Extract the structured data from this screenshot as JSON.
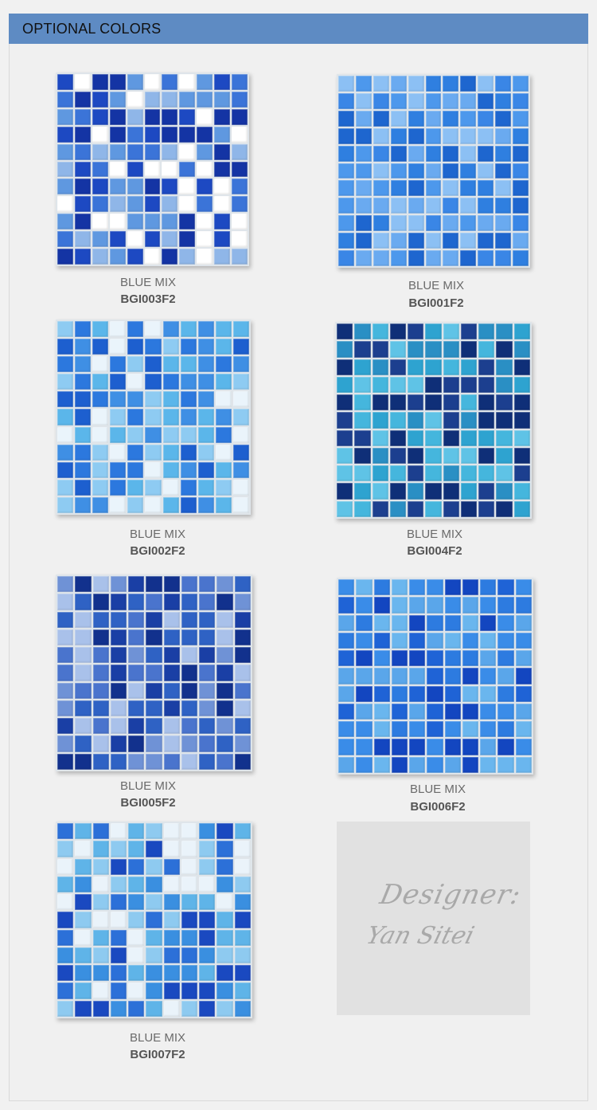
{
  "header": {
    "title": "OPTIONAL COLORS"
  },
  "products": [
    {
      "name": "BLUE MIX",
      "code": "BGI003F2",
      "palette": [
        "#1d49c2",
        "#3b74d8",
        "#8fb6e8",
        "#ffffff",
        "#1434a4",
        "#5f98e0"
      ]
    },
    {
      "name": "BLUE MIX",
      "code": "BGI001F2",
      "palette": [
        "#2f7fe0",
        "#4d98ec",
        "#1e66cf",
        "#6aaaf0",
        "#3a86e6",
        "#8cc0f4"
      ]
    },
    {
      "name": "BLUE MIX",
      "code": "BGI002F2",
      "palette": [
        "#2c78de",
        "#5bb6ea",
        "#1d5fcf",
        "#eaf4fb",
        "#8ecbf2",
        "#3f8fe4"
      ]
    },
    {
      "name": "BLUE MIX",
      "code": "BGI004F2",
      "palette": [
        "#1c3f8f",
        "#2ea3d0",
        "#45b6dd",
        "#0f2f78",
        "#5fc3e6",
        "#2a8fc4"
      ]
    },
    {
      "name": "BLUE MIX",
      "code": "BGI005F2",
      "palette": [
        "#1a3fa5",
        "#2f62c4",
        "#6f92d6",
        "#a9c1ea",
        "#12318d",
        "#4a74cd"
      ]
    },
    {
      "name": "BLUE MIX",
      "code": "BGI006F2",
      "palette": [
        "#1f63d6",
        "#3a8ce8",
        "#6ab6ee",
        "#1346c0",
        "#5aa6ea",
        "#2d7be0"
      ]
    },
    {
      "name": "BLUE MIX",
      "code": "BGI007F2",
      "palette": [
        "#2c70d8",
        "#5fb4e8",
        "#eaf3fa",
        "#1a49c0",
        "#8ecaf0",
        "#3a8fe0"
      ]
    }
  ],
  "designer": {
    "signature_line1": "Designer:",
    "signature_line2": "Yan Sitei"
  }
}
